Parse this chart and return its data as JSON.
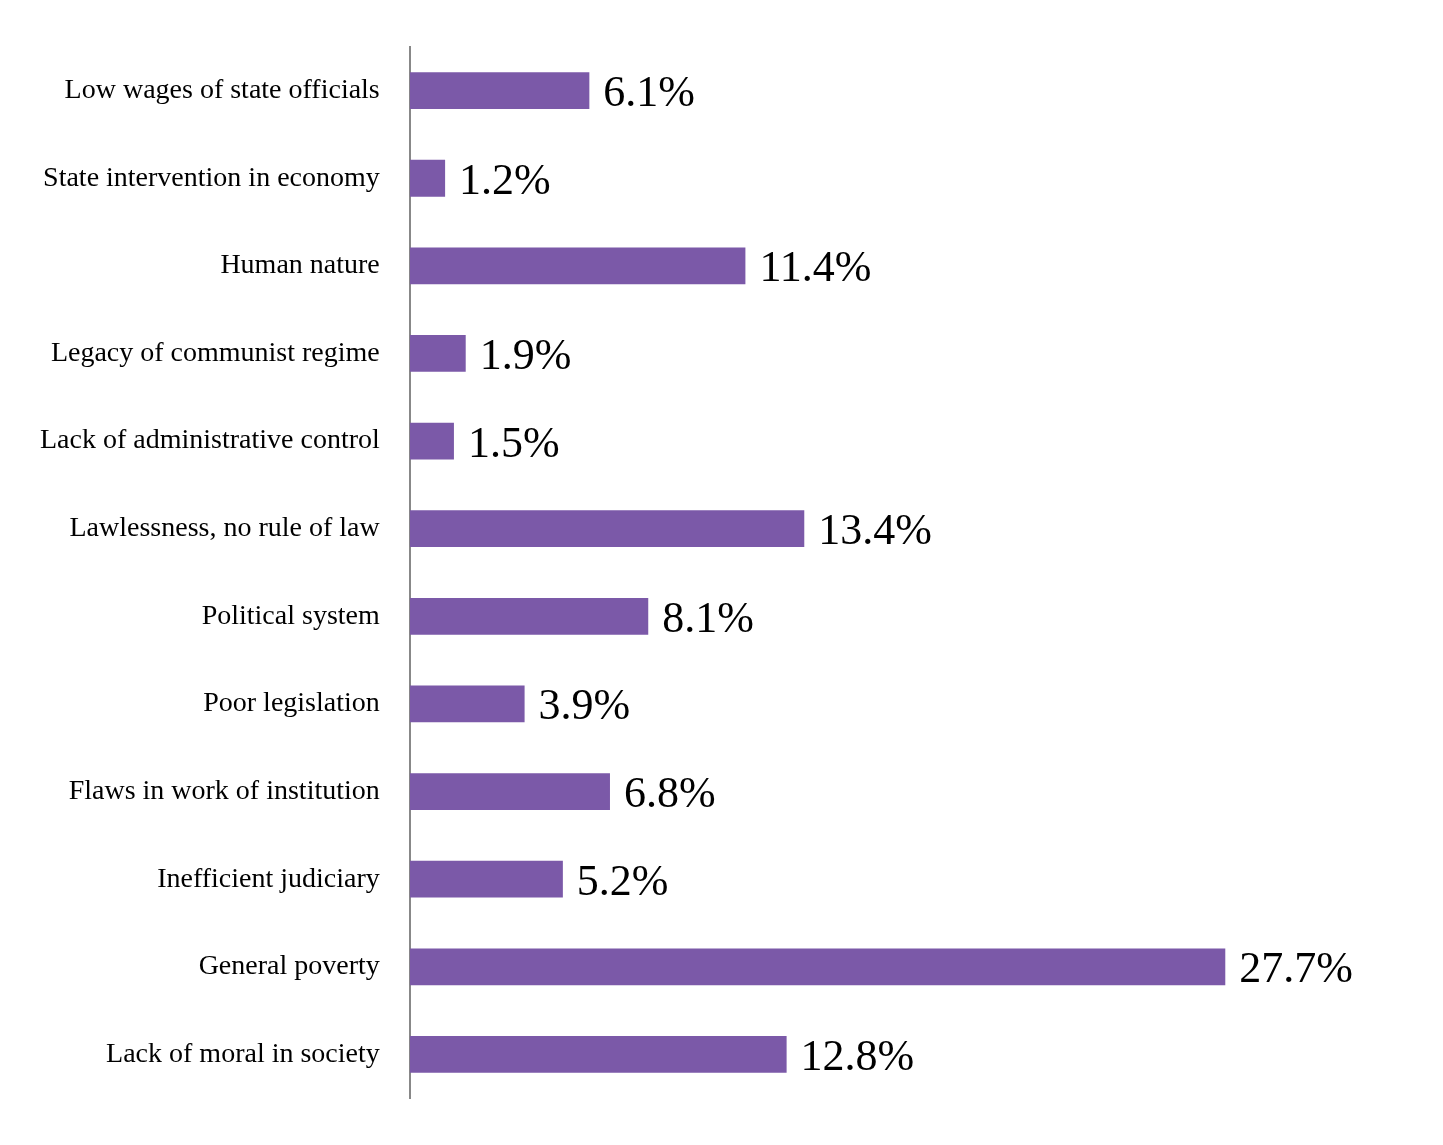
{
  "chart_data": {
    "type": "bar",
    "orientation": "horizontal",
    "categories": [
      "Low wages of state officials",
      "State intervention in economy",
      "Human nature",
      "Legacy of communist regime",
      "Lack of administrative control",
      "Lawlessness, no rule of law",
      "Political system",
      "Poor legislation",
      "Flaws in work of institution",
      "Inefficient judiciary",
      "General poverty",
      "Lack of moral in society"
    ],
    "values": [
      6.1,
      1.2,
      11.4,
      1.9,
      1.5,
      13.4,
      8.1,
      3.9,
      6.8,
      5.2,
      27.7,
      12.8
    ],
    "value_labels": [
      "6.1%",
      "1.2%",
      "11.4%",
      "1.9%",
      "1.5%",
      "13.4%",
      "8.1%",
      "3.9%",
      "6.8%",
      "5.2%",
      "27.7%",
      "12.8%"
    ],
    "color": "#7b59a8",
    "legend": false,
    "tick_labels": "y"
  }
}
